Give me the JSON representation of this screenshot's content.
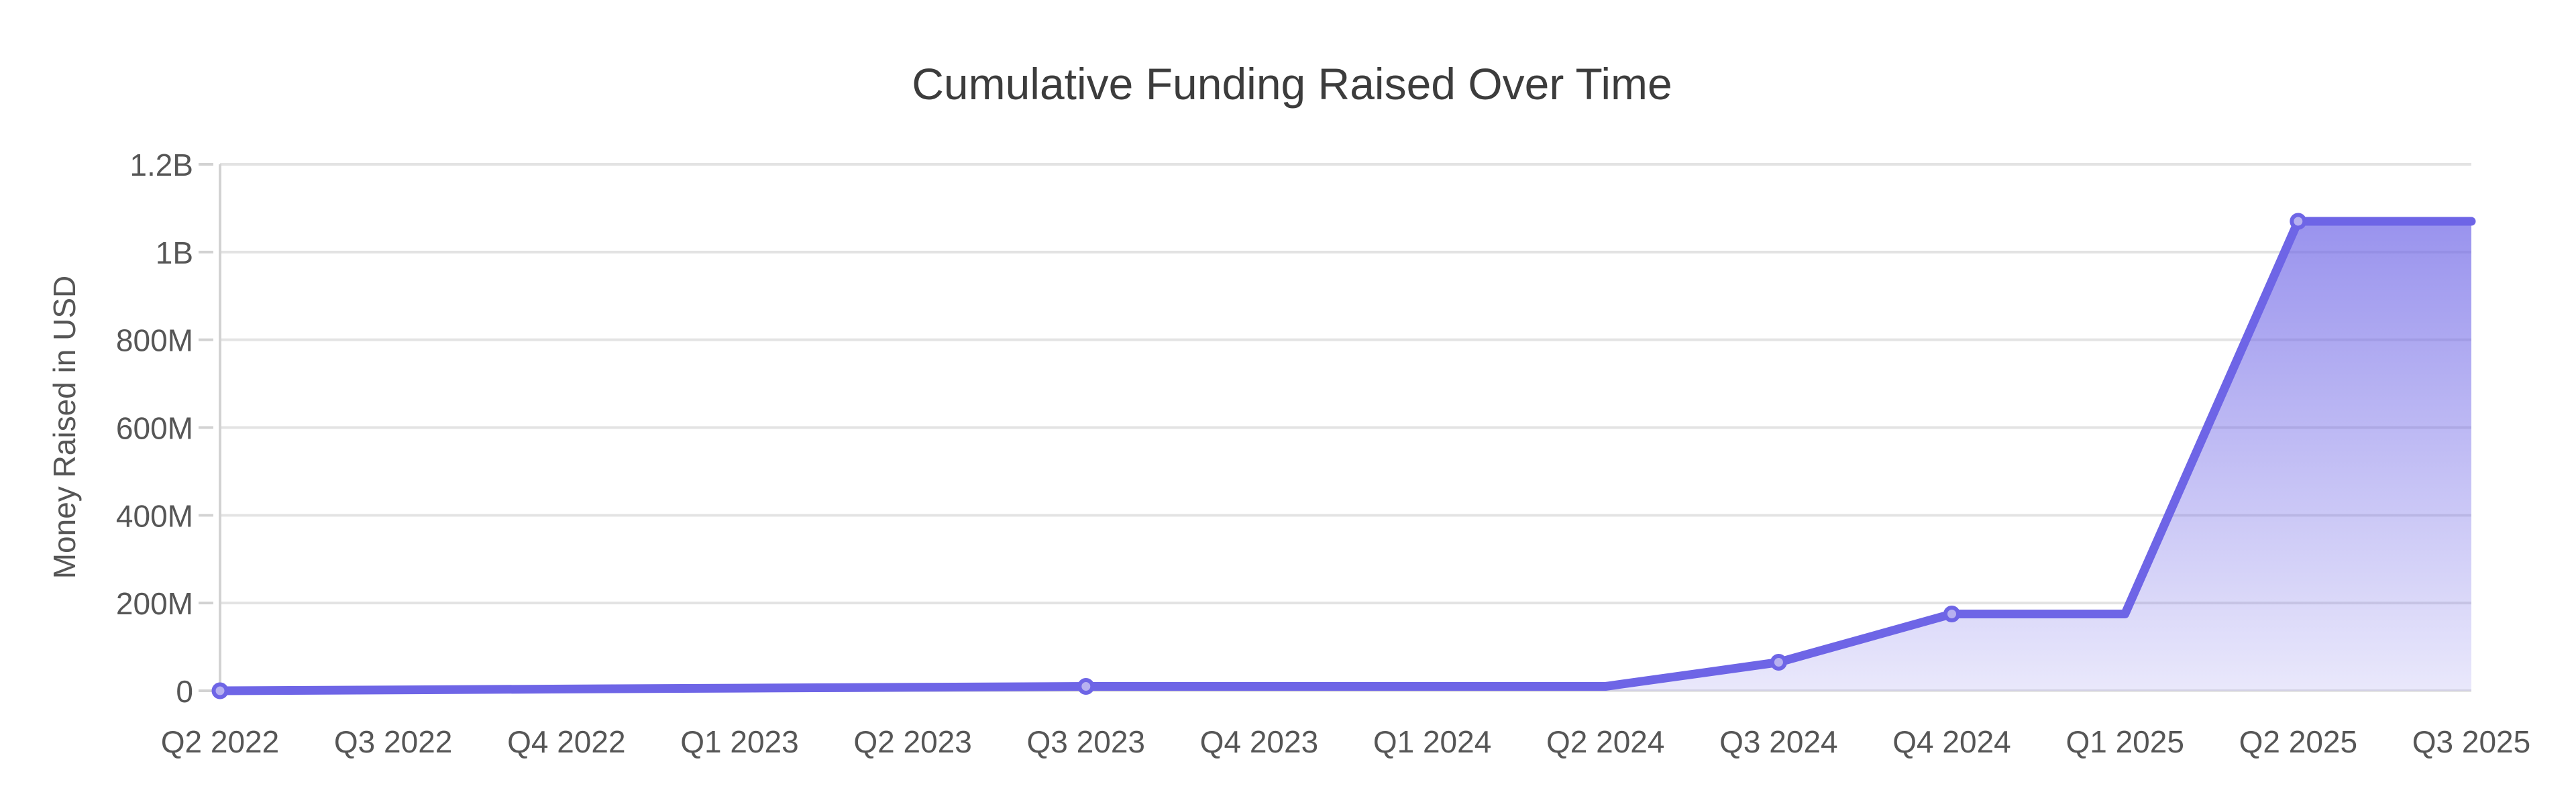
{
  "page": {
    "background": "#ffffff"
  },
  "chart_data": {
    "type": "area",
    "title": "Cumulative Funding Raised Over Time",
    "xlabel": "",
    "ylabel": "Money Raised in USD",
    "legend": "none",
    "grid": "horizontal-only",
    "categories": [
      "Q2 2022",
      "Q3 2022",
      "Q4 2022",
      "Q1 2023",
      "Q2 2023",
      "Q3 2023",
      "Q4 2023",
      "Q1 2024",
      "Q2 2024",
      "Q3 2024",
      "Q4 2024",
      "Q1 2025",
      "Q2 2025",
      "Q3 2025"
    ],
    "series": [
      {
        "name": "Cumulative Funding Raised",
        "unit": "USD millions",
        "values": [
          0,
          2,
          4,
          6,
          8,
          10,
          10,
          10,
          10,
          65,
          175,
          175,
          1070,
          1070
        ]
      }
    ],
    "marker_point_indices": [
      0,
      5,
      9,
      10,
      12
    ],
    "ylim": [
      0,
      1200
    ],
    "ytick_values": [
      0,
      200,
      400,
      600,
      800,
      1000,
      1200
    ],
    "ytick_labels": [
      "0",
      "200M",
      "400M",
      "600M",
      "800M",
      "1B",
      "1.2B"
    ],
    "colors": {
      "line": "#6E65E6",
      "marker_stroke": "#6E65E6",
      "marker_fill": "#B7B1F0",
      "area_top": "rgba(110,101,230,0.70)",
      "area_bottom": "rgba(110,101,230,0.15)",
      "gridline": "#E3E3E3",
      "axis": "#D2D2D2",
      "tick_text": "#565656",
      "title_text": "#3C3C3C"
    }
  }
}
